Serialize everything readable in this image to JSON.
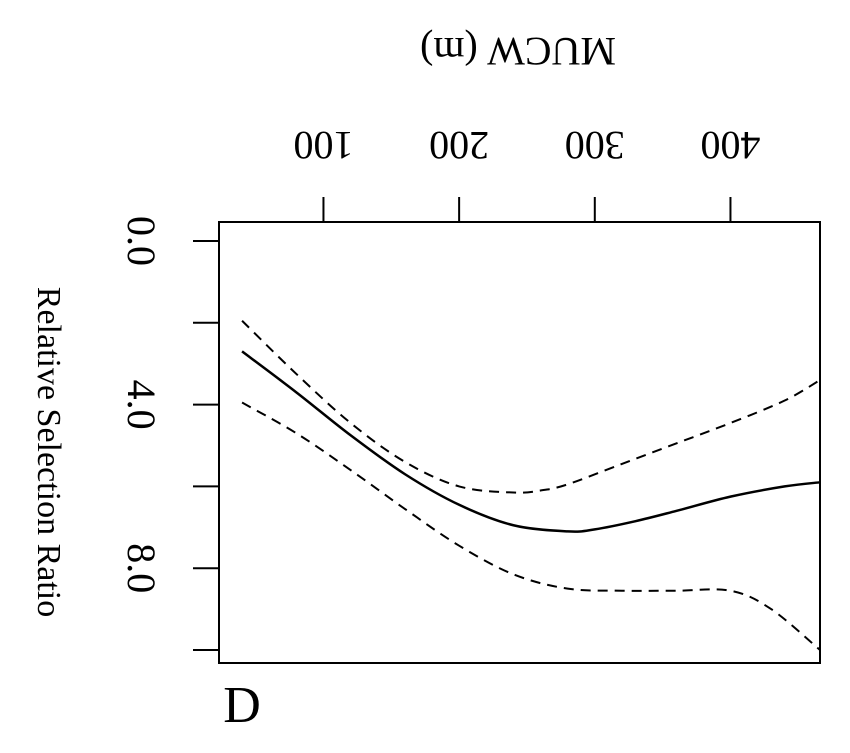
{
  "chart_data": {
    "type": "line",
    "orientation": "rotated-and-mirrored",
    "panel_label": "D",
    "title": "",
    "xlabel": "MUCW (m)",
    "ylabel": "Relative Selection Ratio",
    "xlim": [
      23,
      466
    ],
    "ylim": [
      0.0,
      10.0
    ],
    "x_ticks": [
      100,
      200,
      300,
      400
    ],
    "x_tick_labels": [
      "100",
      "200",
      "300",
      "400"
    ],
    "y_ticks": [
      0,
      2,
      4,
      6,
      8,
      10
    ],
    "y_tick_labels": [
      "0.0",
      "4.0",
      "8.0"
    ],
    "y_labeled_ticks": [
      0,
      4,
      8
    ],
    "grid": false,
    "series": [
      {
        "style": "solid",
        "x": [
          40,
          80,
          120,
          160,
          200,
          240,
          280,
          300,
          330,
          360,
          400,
          440,
          466
        ],
        "y": [
          2.7,
          3.7,
          4.75,
          5.7,
          6.45,
          6.95,
          7.1,
          7.05,
          6.85,
          6.6,
          6.25,
          6.0,
          5.9
        ]
      },
      {
        "style": "dashed",
        "x": [
          40,
          80,
          120,
          160,
          200,
          240,
          260,
          280,
          320,
          360,
          400,
          440,
          466
        ],
        "y": [
          1.95,
          3.25,
          4.45,
          5.4,
          6.0,
          6.15,
          6.1,
          5.95,
          5.45,
          4.95,
          4.45,
          3.9,
          3.4
        ]
      },
      {
        "style": "dashed",
        "x": [
          40,
          80,
          120,
          160,
          200,
          240,
          280,
          320,
          360,
          400,
          430,
          466
        ],
        "y": [
          3.95,
          4.7,
          5.6,
          6.55,
          7.45,
          8.15,
          8.5,
          8.55,
          8.55,
          8.55,
          9.0,
          10.0
        ]
      }
    ]
  }
}
